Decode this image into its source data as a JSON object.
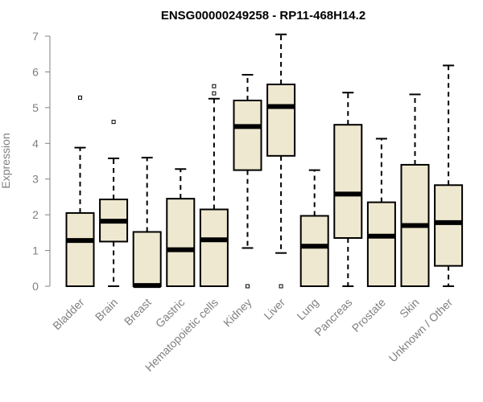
{
  "chart_data": {
    "type": "boxplot",
    "title": "ENSG00000249258 - RP11-468H14.2",
    "ylabel": "Expression",
    "xlabel": "",
    "ylim": [
      0,
      7
    ],
    "yticks": [
      0,
      1,
      2,
      3,
      4,
      5,
      6,
      7
    ],
    "grid": false,
    "box_fill": "#efe8d0",
    "categories": [
      "Bladder",
      "Brain",
      "Breast",
      "Gastric",
      "Hematopoietic cells",
      "Kidney",
      "Liver",
      "Lung",
      "Pancreas",
      "Prostate",
      "Skin",
      "Unknown / Other"
    ],
    "boxes": [
      {
        "min": 0,
        "q1": 0,
        "median": 1.28,
        "q3": 2.05,
        "max": 3.88,
        "outliers": [
          5.28
        ]
      },
      {
        "min": 0,
        "q1": 1.25,
        "median": 1.82,
        "q3": 2.43,
        "max": 3.58,
        "outliers": [
          4.6
        ]
      },
      {
        "min": 0,
        "q1": 0,
        "median": 0.02,
        "q3": 1.52,
        "max": 3.6,
        "outliers": []
      },
      {
        "min": 0,
        "q1": 0,
        "median": 1.02,
        "q3": 2.45,
        "max": 3.28,
        "outliers": []
      },
      {
        "min": 0,
        "q1": 0,
        "median": 1.3,
        "q3": 2.15,
        "max": 5.25,
        "outliers": [
          5.4,
          5.6
        ]
      },
      {
        "min": 1.07,
        "q1": 3.25,
        "median": 4.47,
        "q3": 5.2,
        "max": 5.92,
        "outliers": [
          0
        ]
      },
      {
        "min": 0.93,
        "q1": 3.65,
        "median": 5.03,
        "q3": 5.65,
        "max": 7.05,
        "outliers": [
          0
        ]
      },
      {
        "min": 0,
        "q1": 0,
        "median": 1.12,
        "q3": 1.97,
        "max": 3.25,
        "outliers": []
      },
      {
        "min": 0,
        "q1": 1.35,
        "median": 2.58,
        "q3": 4.52,
        "max": 5.42,
        "outliers": []
      },
      {
        "min": 0,
        "q1": 0,
        "median": 1.4,
        "q3": 2.35,
        "max": 4.13,
        "outliers": []
      },
      {
        "min": 0,
        "q1": 0,
        "median": 1.7,
        "q3": 3.4,
        "max": 5.37,
        "outliers": []
      },
      {
        "min": 0,
        "q1": 0.57,
        "median": 1.78,
        "q3": 2.83,
        "max": 6.18,
        "outliers": []
      }
    ]
  }
}
